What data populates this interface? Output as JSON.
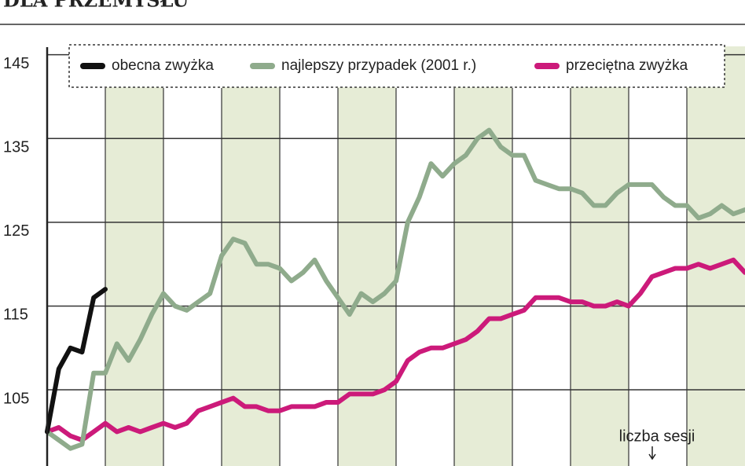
{
  "chart_data": {
    "type": "line",
    "title": "DLA PRZEMYSŁU",
    "x_label": "liczba sesji",
    "x": [
      0,
      2,
      4,
      6,
      8,
      10,
      12,
      14,
      16,
      18,
      20,
      22,
      24,
      26,
      28,
      30,
      32,
      34,
      36,
      38,
      40,
      42,
      44,
      46,
      48,
      50,
      52,
      54,
      56,
      58,
      60,
      62,
      64,
      66,
      68,
      70,
      72,
      74,
      76,
      78,
      80,
      82,
      84,
      86,
      88,
      90,
      92,
      94,
      96,
      98,
      100,
      102,
      104,
      106,
      108,
      110,
      112,
      114,
      116,
      118,
      120
    ],
    "xlim": [
      0,
      120
    ],
    "xticks": [
      10,
      20,
      30,
      40,
      50,
      60,
      70,
      80,
      90,
      100,
      110
    ],
    "ylim": [
      96,
      146
    ],
    "yticks": [
      105,
      115,
      125,
      135,
      145
    ],
    "grid": true,
    "legend": "top",
    "series": [
      {
        "name": "obecna zwyżka",
        "color": "#111111",
        "values": [
          100,
          107.5,
          110,
          109.5,
          116,
          117,
          null,
          null,
          null,
          null,
          null,
          null,
          null,
          null,
          null,
          null,
          null,
          null,
          null,
          null,
          null,
          null,
          null,
          null,
          null,
          null,
          null,
          null,
          null,
          null,
          null,
          null,
          null,
          null,
          null,
          null,
          null,
          null,
          null,
          null,
          null,
          null,
          null,
          null,
          null,
          null,
          null,
          null,
          null,
          null,
          null,
          null,
          null,
          null,
          null,
          null,
          null,
          null,
          null,
          null,
          null
        ]
      },
      {
        "name": "najlepszy przypadek (2001 r.)",
        "color": "#8fab8c",
        "values": [
          100,
          99,
          98,
          98.5,
          107,
          107,
          110.5,
          108.5,
          111,
          114,
          116.5,
          115,
          114.5,
          115.5,
          116.5,
          121,
          123,
          122.5,
          120,
          120,
          119.5,
          118,
          119,
          120.5,
          118,
          116,
          114,
          116.5,
          115.5,
          116.5,
          118,
          125,
          128,
          132,
          130.5,
          132,
          133,
          135,
          136,
          134,
          133,
          133,
          130,
          129.5,
          129,
          129,
          128.5,
          127,
          127,
          128.5,
          129.5,
          129.5,
          129.5,
          128,
          127,
          127,
          125.5,
          126,
          127,
          126,
          126.5
        ]
      },
      {
        "name": "przeciętna zwyżka",
        "color": "#cc1a7a",
        "values": [
          100,
          100.5,
          99.5,
          99,
          100,
          101,
          100,
          100.5,
          100,
          100.5,
          101,
          100.5,
          101,
          102.5,
          103,
          103.5,
          104,
          103,
          103,
          102.5,
          102.5,
          103,
          103,
          103,
          103.5,
          103.5,
          104.5,
          104.5,
          104.5,
          105,
          106,
          108.5,
          109.5,
          110,
          110,
          110.5,
          111,
          112,
          113.5,
          113.5,
          114,
          114.5,
          116,
          116,
          116,
          115.5,
          115.5,
          115,
          115,
          115.5,
          115,
          116.5,
          118.5,
          119,
          119.5,
          119.5,
          120,
          119.5,
          120,
          120.5,
          119
        ]
      }
    ]
  }
}
